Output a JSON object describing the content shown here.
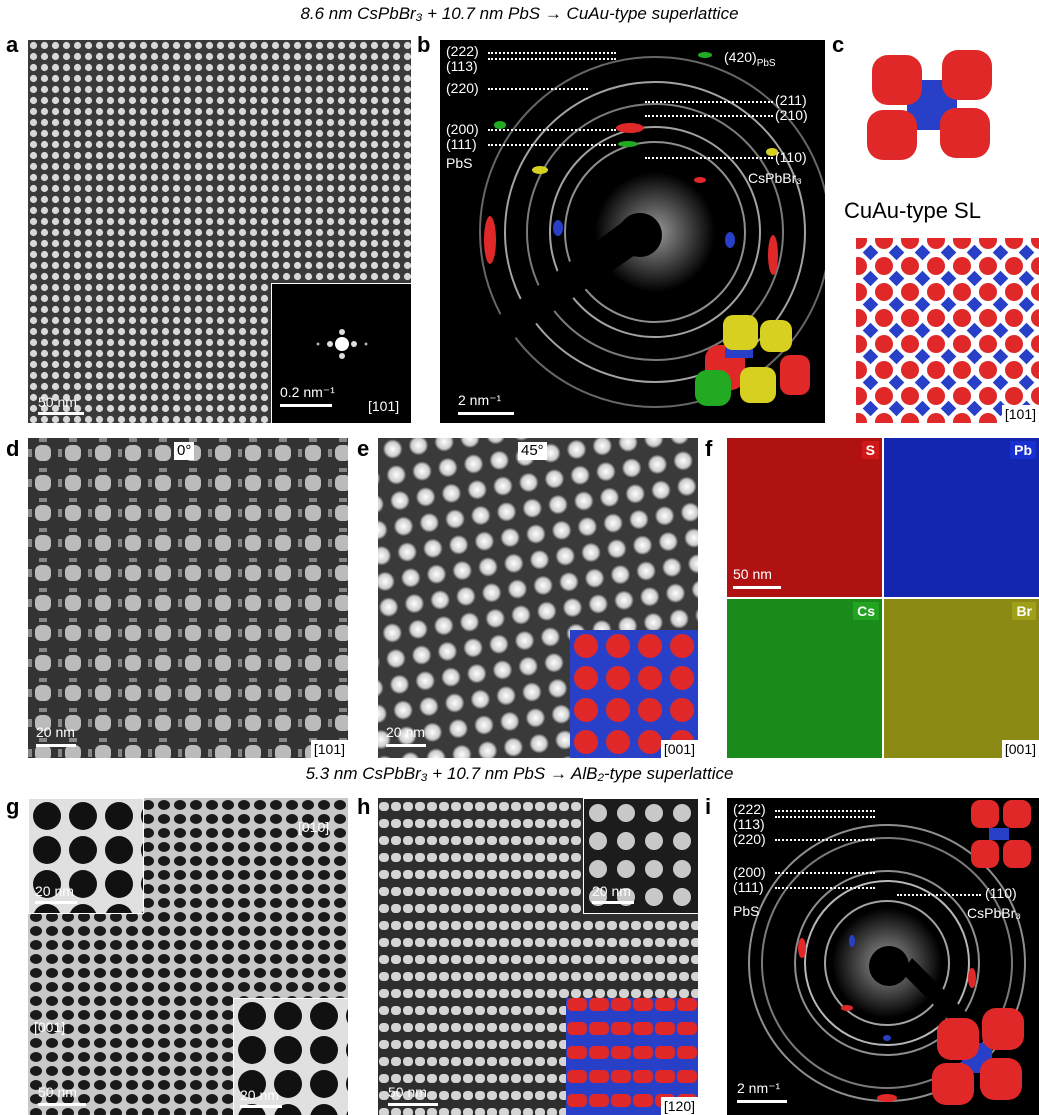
{
  "titles": {
    "top": "8.6 nm CsPbBr₃ + 10.7 nm PbS → CuAu-type superlattice",
    "bottom": "5.3 nm CsPbBr₃ + 10.7 nm PbS → AlB₂-type superlattice"
  },
  "panel_labels": [
    "a",
    "b",
    "c",
    "d",
    "e",
    "f",
    "g",
    "h",
    "i"
  ],
  "panel_a": {
    "scalebar": "50 nm",
    "inset_scalebar": "0.2 nm⁻¹",
    "zone_axis": "[101]"
  },
  "panel_b": {
    "scalebar": "2 nm⁻¹",
    "pbs_reflections": [
      "(222)",
      "(113)",
      "(220)",
      "(200)",
      "(111)"
    ],
    "pbs_label": "PbS",
    "pbs_420": "(420)",
    "pbs_sub": "PbS",
    "cspbbr3_reflections": [
      "(211)",
      "(210)",
      "(110)"
    ],
    "cspbbr3_label": "CsPbBr₃"
  },
  "panel_c": {
    "caption": "CuAu-type SL",
    "zone_axis": "[101]"
  },
  "panel_d": {
    "angle": "0°",
    "scalebar": "20 nm",
    "zone_axis": "[101]"
  },
  "panel_e": {
    "angle": "45°",
    "scalebar": "20 nm",
    "zone_axis": "[001]"
  },
  "panel_f": {
    "maps": [
      {
        "element": "S",
        "color": "#c81414"
      },
      {
        "element": "Pb",
        "color": "#1428c8"
      },
      {
        "element": "Cs",
        "color": "#1ea01e"
      },
      {
        "element": "Br",
        "color": "#b4b414"
      }
    ],
    "scalebar": "50 nm",
    "zone_axis": "[001]"
  },
  "panel_g": {
    "zone_010": "[010]",
    "zone_001": "[001]",
    "scalebar": "50 nm",
    "inset_top_scalebar": "20 nm",
    "inset_bottom_scalebar": "20 nm"
  },
  "panel_h": {
    "scalebar": "50 nm",
    "inset_scalebar": "20 nm",
    "zone_axis": "[120]"
  },
  "panel_i": {
    "scalebar": "2 nm⁻¹",
    "pbs_reflections": [
      "(222)",
      "(113)",
      "(220)",
      "(200)",
      "(111)"
    ],
    "pbs_label": "PbS",
    "cspbbr3_reflection": "(110)",
    "cspbbr3_label": "CsPbBr₃"
  },
  "colors": {
    "pbs": "#e02828",
    "cspbbr3": "#2840c8",
    "cs": "#22aa22",
    "br": "#d8d020"
  }
}
